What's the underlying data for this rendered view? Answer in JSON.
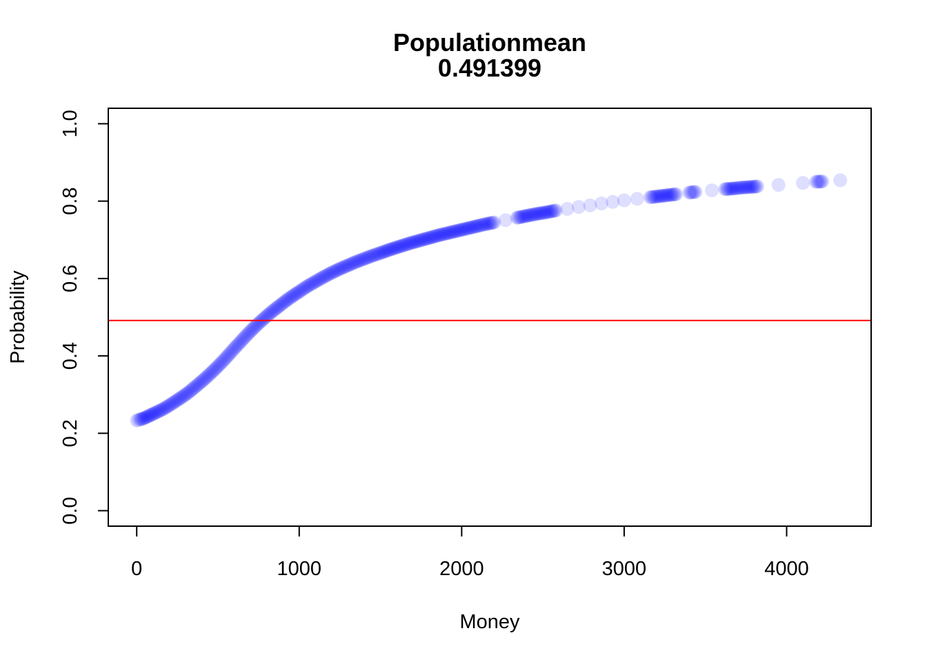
{
  "chart_data": {
    "type": "scatter",
    "title": "Populationmean",
    "subtitle": "0.491399",
    "xlabel": "Money",
    "ylabel": "Probability",
    "xlim": [
      -175,
      4520
    ],
    "ylim": [
      -0.04,
      1.04
    ],
    "xticks": [
      0,
      1000,
      2000,
      3000,
      4000
    ],
    "yticks": [
      0.0,
      0.2,
      0.4,
      0.6,
      0.8,
      1.0
    ],
    "xtick_labels": [
      "0",
      "1000",
      "2000",
      "3000",
      "4000"
    ],
    "ytick_labels": [
      "0.0",
      "0.2",
      "0.4",
      "0.6",
      "0.8",
      "1.0"
    ],
    "grid": false,
    "colors": {
      "points": "#0000ff",
      "reference_line": "#ff0000"
    },
    "reference_line": {
      "orientation": "horizontal",
      "y": 0.491399
    },
    "points": [
      [
        0,
        0.233
      ],
      [
        10,
        0.234
      ],
      [
        20,
        0.236
      ],
      [
        40,
        0.238
      ],
      [
        60,
        0.242
      ],
      [
        80,
        0.246
      ],
      [
        100,
        0.25
      ],
      [
        130,
        0.256
      ],
      [
        160,
        0.262
      ],
      [
        200,
        0.272
      ],
      [
        240,
        0.283
      ],
      [
        280,
        0.294
      ],
      [
        320,
        0.306
      ],
      [
        360,
        0.32
      ],
      [
        400,
        0.334
      ],
      [
        440,
        0.349
      ],
      [
        480,
        0.365
      ],
      [
        520,
        0.382
      ],
      [
        560,
        0.4
      ],
      [
        600,
        0.419
      ],
      [
        640,
        0.437
      ],
      [
        680,
        0.455
      ],
      [
        720,
        0.472
      ],
      [
        760,
        0.488
      ],
      [
        800,
        0.503
      ],
      [
        840,
        0.517
      ],
      [
        880,
        0.53
      ],
      [
        920,
        0.543
      ],
      [
        960,
        0.555
      ],
      [
        1000,
        0.566
      ],
      [
        1050,
        0.58
      ],
      [
        1100,
        0.592
      ],
      [
        1150,
        0.604
      ],
      [
        1200,
        0.615
      ],
      [
        1250,
        0.625
      ],
      [
        1300,
        0.634
      ],
      [
        1350,
        0.643
      ],
      [
        1400,
        0.651
      ],
      [
        1450,
        0.659
      ],
      [
        1500,
        0.666
      ],
      [
        1560,
        0.675
      ],
      [
        1620,
        0.683
      ],
      [
        1680,
        0.691
      ],
      [
        1740,
        0.698
      ],
      [
        1800,
        0.705
      ],
      [
        1860,
        0.712
      ],
      [
        1920,
        0.718
      ],
      [
        1980,
        0.724
      ],
      [
        2040,
        0.73
      ],
      [
        2100,
        0.736
      ],
      [
        2140,
        0.74
      ],
      [
        2200,
        0.745
      ],
      [
        2270,
        0.751
      ],
      [
        2340,
        0.757
      ],
      [
        2400,
        0.762
      ],
      [
        2460,
        0.767
      ],
      [
        2520,
        0.771
      ],
      [
        2580,
        0.776
      ],
      [
        2650,
        0.78
      ],
      [
        2720,
        0.785
      ],
      [
        2790,
        0.789
      ],
      [
        2860,
        0.794
      ],
      [
        2930,
        0.798
      ],
      [
        3000,
        0.802
      ],
      [
        3080,
        0.806
      ],
      [
        3160,
        0.81
      ],
      [
        3200,
        0.812
      ],
      [
        3260,
        0.815
      ],
      [
        3320,
        0.818
      ],
      [
        3400,
        0.822
      ],
      [
        3440,
        0.824
      ],
      [
        3540,
        0.828
      ],
      [
        3620,
        0.831
      ],
      [
        3680,
        0.833
      ],
      [
        3720,
        0.835
      ],
      [
        3760,
        0.836
      ],
      [
        3820,
        0.838
      ],
      [
        3950,
        0.842
      ],
      [
        4100,
        0.847
      ],
      [
        4180,
        0.85
      ],
      [
        4220,
        0.851
      ],
      [
        4330,
        0.854
      ]
    ]
  }
}
